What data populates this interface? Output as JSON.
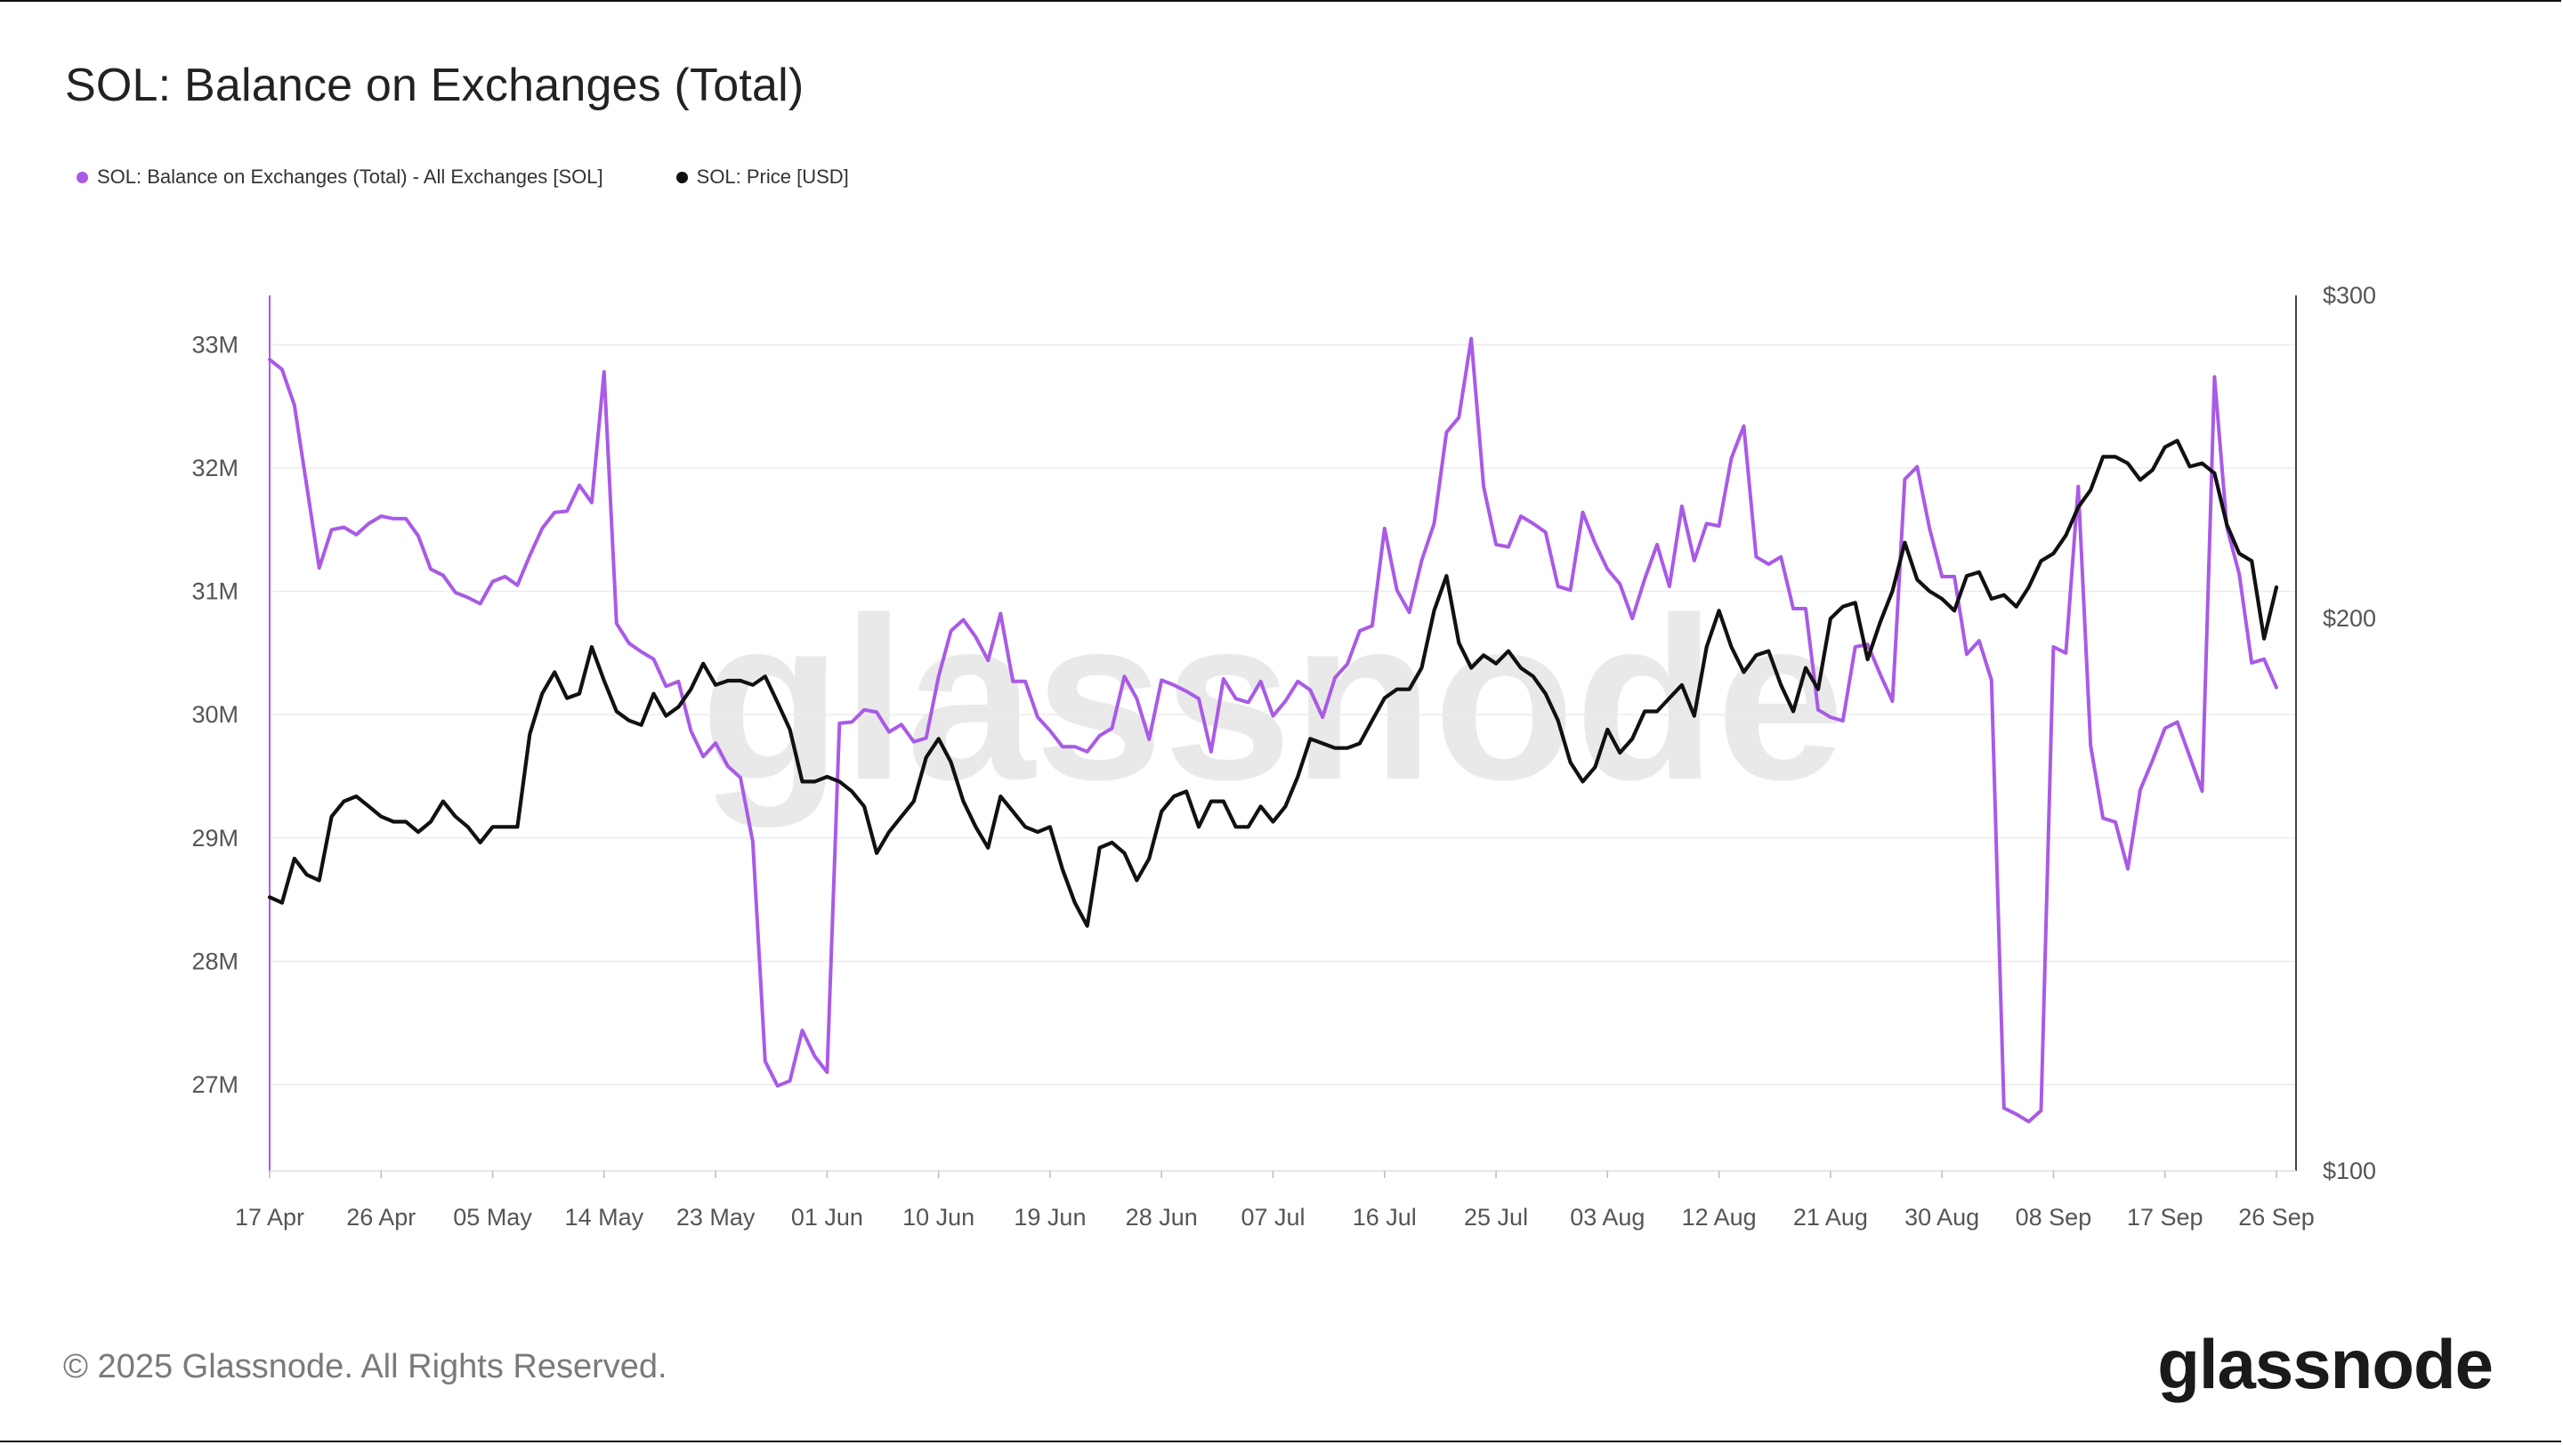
{
  "title": "SOL: Balance on Exchanges (Total)",
  "copyright": "© 2025 Glassnode. All Rights Reserved.",
  "brand": "glassnode",
  "watermark": "glassnode",
  "colors": {
    "balance": "#a95ae6",
    "price": "#111111",
    "grid": "#ececec",
    "axis_text": "#555555"
  },
  "chart_data": {
    "type": "line",
    "title": "SOL: Balance on Exchanges (Total)",
    "legend_position": "top-left",
    "grid": true,
    "x": {
      "start_date": "2025-04-17",
      "end_date": "2025-09-26",
      "tick_labels": [
        "17 Apr",
        "26 Apr",
        "05 May",
        "14 May",
        "23 May",
        "01 Jun",
        "10 Jun",
        "19 Jun",
        "28 Jun",
        "07 Jul",
        "16 Jul",
        "25 Jul",
        "03 Aug",
        "12 Aug",
        "21 Aug",
        "30 Aug",
        "08 Sep",
        "17 Sep",
        "26 Sep"
      ]
    },
    "y_left": {
      "scale": "linear",
      "range": [
        26300000,
        33400000
      ],
      "ticks": [
        27000000,
        28000000,
        29000000,
        30000000,
        31000000,
        32000000,
        33000000
      ],
      "tick_labels": [
        "27M",
        "28M",
        "29M",
        "30M",
        "31M",
        "32M",
        "33M"
      ]
    },
    "y_right": {
      "scale": "log",
      "range": [
        100,
        300
      ],
      "ticks": [
        100,
        200,
        300
      ],
      "tick_labels": [
        "$100",
        "$200",
        "$300"
      ]
    },
    "series": [
      {
        "name": "SOL: Balance on Exchanges (Total) - All Exchanges [SOL]",
        "axis": "left",
        "color": "#a95ae6",
        "values": [
          32880000,
          32800000,
          32510000,
          31850000,
          31190000,
          31500000,
          31520000,
          31460000,
          31550000,
          31610000,
          31590000,
          31590000,
          31450000,
          31180000,
          31130000,
          30990000,
          30950000,
          30900000,
          31080000,
          31120000,
          31050000,
          31290000,
          31510000,
          31640000,
          31650000,
          31860000,
          31720000,
          32780000,
          30740000,
          30580000,
          30510000,
          30450000,
          30230000,
          30270000,
          29870000,
          29660000,
          29770000,
          29580000,
          29490000,
          28970000,
          27190000,
          26990000,
          27030000,
          27440000,
          27230000,
          27100000,
          29930000,
          29940000,
          30040000,
          30020000,
          29860000,
          29920000,
          29780000,
          29810000,
          30310000,
          30680000,
          30770000,
          30630000,
          30440000,
          30820000,
          30270000,
          30270000,
          29980000,
          29870000,
          29740000,
          29740000,
          29700000,
          29830000,
          29890000,
          30310000,
          30130000,
          29800000,
          30280000,
          30240000,
          30190000,
          30130000,
          29700000,
          30290000,
          30130000,
          30100000,
          30270000,
          29990000,
          30110000,
          30270000,
          30200000,
          29980000,
          30300000,
          30410000,
          30680000,
          30720000,
          31510000,
          31010000,
          30830000,
          31250000,
          31550000,
          32290000,
          32410000,
          33050000,
          31850000,
          31380000,
          31360000,
          31610000,
          31550000,
          31480000,
          31040000,
          31010000,
          31640000,
          31390000,
          31180000,
          31060000,
          30780000,
          31100000,
          31380000,
          31040000,
          31690000,
          31250000,
          31550000,
          31530000,
          32080000,
          32340000,
          31280000,
          31220000,
          31280000,
          30860000,
          30860000,
          30040000,
          29980000,
          29950000,
          30550000,
          30570000,
          30330000,
          30110000,
          31910000,
          32010000,
          31510000,
          31120000,
          31120000,
          30490000,
          30600000,
          30280000,
          26810000,
          26760000,
          26700000,
          26790000,
          30550000,
          30500000,
          31850000,
          29750000,
          29160000,
          29130000,
          28750000,
          29390000,
          29630000,
          29890000,
          29940000,
          29660000,
          29380000,
          32740000,
          31520000,
          31140000,
          30420000,
          30450000,
          30220000
        ]
      },
      {
        "name": "SOL: Price [USD]",
        "axis": "right",
        "color": "#111111",
        "values": [
          141,
          140,
          148,
          145,
          144,
          156,
          159,
          160,
          158,
          156,
          155,
          155,
          153,
          155,
          159,
          156,
          154,
          151,
          154,
          154,
          154,
          173,
          182,
          187,
          181,
          182,
          193,
          185,
          178,
          176,
          175,
          182,
          177,
          179,
          183,
          189,
          184,
          185,
          185,
          184,
          186,
          180,
          174,
          163,
          163,
          164,
          163,
          161,
          158,
          149,
          153,
          156,
          159,
          168,
          172,
          167,
          159,
          154,
          150,
          160,
          157,
          154,
          153,
          154,
          146,
          140,
          136,
          150,
          151,
          149,
          144,
          148,
          157,
          160,
          161,
          154,
          159,
          159,
          154,
          154,
          158,
          155,
          158,
          164,
          172,
          171,
          170,
          170,
          171,
          176,
          181,
          183,
          183,
          188,
          202,
          211,
          194,
          188,
          191,
          189,
          192,
          188,
          186,
          182,
          176,
          167,
          163,
          166,
          174,
          169,
          172,
          178,
          178,
          181,
          184,
          177,
          193,
          202,
          193,
          187,
          191,
          192,
          184,
          178,
          188,
          183,
          200,
          203,
          204,
          190,
          199,
          207,
          220,
          210,
          207,
          205,
          202,
          211,
          212,
          205,
          206,
          203,
          208,
          215,
          217,
          222,
          230,
          235,
          245,
          245,
          243,
          238,
          241,
          248,
          250,
          242,
          243,
          240,
          225,
          217,
          215,
          195,
          208
        ]
      }
    ]
  }
}
